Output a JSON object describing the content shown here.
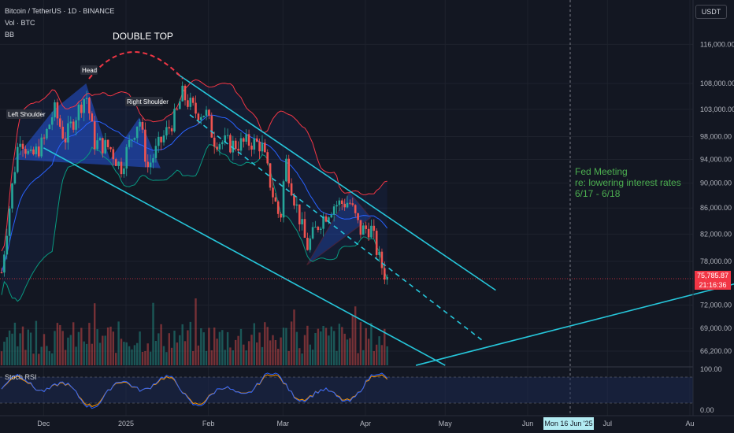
{
  "header": {
    "symbol_line": "Bitcoin / TetherUS · 1D · BINANCE",
    "vol_label": "Vol · BTC",
    "bb_label": "BB",
    "currency_button": "USDT"
  },
  "annotations": {
    "double_top": "DOUBLE TOP",
    "head": "Head",
    "left_shoulder": "Left Shoulder",
    "right_shoulder": "Right Shoulder",
    "fed_line1": "Fed Meeting",
    "fed_line2": "re: lowering interest rates",
    "fed_line3": "6/17 - 6/18"
  },
  "indicators": {
    "stoch_rsi_label": "Stoch RSI"
  },
  "price_label": {
    "price": "75,785.87",
    "countdown": "21:16:36"
  },
  "crosshair_date": "Mon 16 Jun '25",
  "colors": {
    "background": "#131722",
    "up": "#26a69a",
    "down": "#ef5350",
    "bb_upper": "#f23645",
    "bb_basis": "#2962ff",
    "bb_lower": "#089981",
    "channel": "#26c6da",
    "annotation_green": "#4caf50",
    "double_top_curve": "#f23645"
  },
  "chart_data": {
    "type": "candlestick",
    "x_axis": {
      "ticks": [
        "Dec",
        "2025",
        "Feb",
        "Mar",
        "Apr",
        "May",
        "Jun",
        "Jul",
        "Au"
      ],
      "highlight": "Mon 16 Jun '25"
    },
    "y_axis": {
      "scale": "log",
      "ticks": [
        116000,
        108000,
        103000,
        98000,
        94000,
        90000,
        86000,
        82000,
        78000,
        72000,
        69000,
        66200
      ],
      "tick_labels": [
        "116,000.00",
        "108,000.00",
        "103,000.00",
        "98,000.00",
        "94,000.00",
        "90,000.00",
        "86,000.00",
        "82,000.00",
        "78,000.00",
        "72,000.00",
        "69,000.00",
        "66,200.00"
      ]
    },
    "last_price": 75785.87,
    "close_series": [
      {
        "x": "2024-11-20",
        "close": 92000
      },
      {
        "x": "2024-11-22",
        "close": 98500
      },
      {
        "x": "2024-11-26",
        "close": 94000
      },
      {
        "x": "2024-12-01",
        "close": 97000
      },
      {
        "x": "2024-12-05",
        "close": 103000
      },
      {
        "x": "2024-12-09",
        "close": 97500
      },
      {
        "x": "2024-12-17",
        "close": 106000
      },
      {
        "x": "2024-12-20",
        "close": 97000
      },
      {
        "x": "2024-12-26",
        "close": 96000
      },
      {
        "x": "2024-12-30",
        "close": 92500
      },
      {
        "x": "2025-01-06",
        "close": 101500
      },
      {
        "x": "2025-01-09",
        "close": 92500
      },
      {
        "x": "2025-01-14",
        "close": 97000
      },
      {
        "x": "2025-01-20",
        "close": 102000
      },
      {
        "x": "2025-01-22",
        "close": 106000
      },
      {
        "x": "2025-01-27",
        "close": 102500
      },
      {
        "x": "2025-01-31",
        "close": 102400
      },
      {
        "x": "2025-02-03",
        "close": 97500
      },
      {
        "x": "2025-02-10",
        "close": 96500
      },
      {
        "x": "2025-02-17",
        "close": 97000
      },
      {
        "x": "2025-02-21",
        "close": 96500
      },
      {
        "x": "2025-02-25",
        "close": 88500
      },
      {
        "x": "2025-02-28",
        "close": 84000
      },
      {
        "x": "2025-03-02",
        "close": 94000
      },
      {
        "x": "2025-03-05",
        "close": 88000
      },
      {
        "x": "2025-03-10",
        "close": 80000
      },
      {
        "x": "2025-03-15",
        "close": 84000
      },
      {
        "x": "2025-03-20",
        "close": 86500
      },
      {
        "x": "2025-03-26",
        "close": 87000
      },
      {
        "x": "2025-03-30",
        "close": 82500
      },
      {
        "x": "2025-04-03",
        "close": 83000
      },
      {
        "x": "2025-04-06",
        "close": 78500
      },
      {
        "x": "2025-04-08",
        "close": 76500
      },
      {
        "x": "2025-04-09",
        "close": 75785.87
      }
    ],
    "overlays": {
      "bollinger_bands": [
        "upper",
        "basis",
        "lower"
      ],
      "descending_channel_upper": [
        {
          "x": "2025-01-20",
          "y": 110000
        },
        {
          "x": "2025-05-20",
          "y": 74000
        }
      ],
      "descending_channel_lower": [
        {
          "x": "2024-12-01",
          "y": 96000
        },
        {
          "x": "2025-05-01",
          "y": 64500
        }
      ],
      "channel_midline_dashed": [
        {
          "x": "2025-01-25",
          "y": 102000
        },
        {
          "x": "2025-05-15",
          "y": 67500
        }
      ],
      "ascending_support": [
        {
          "x": "2025-04-20",
          "y": 64500
        },
        {
          "x": "2025-08-30",
          "y": 76000
        }
      ],
      "fed_meeting_date": "2025-06-17"
    },
    "stoch_rsi": {
      "range": [
        0,
        100
      ],
      "tick_labels": [
        "100.00",
        "0.00"
      ],
      "bands": [
        80,
        20
      ]
    }
  }
}
